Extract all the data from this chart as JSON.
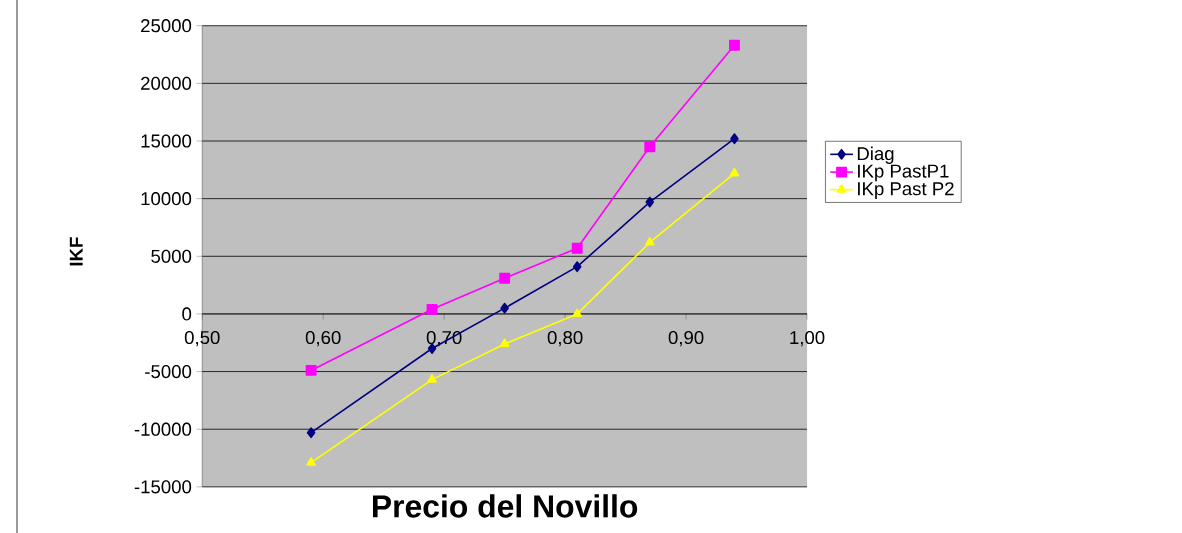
{
  "chart_data": {
    "type": "line",
    "xlabel": "Precio del Novillo",
    "ylabel": "IKF",
    "x": [
      0.59,
      0.69,
      0.75,
      0.81,
      0.87,
      0.94
    ],
    "series": [
      {
        "name": "Diag",
        "color": "#000080",
        "marker": "diamond",
        "values": [
          -10300,
          -3000,
          500,
          4100,
          9700,
          15200
        ]
      },
      {
        "name": "IKp PastP1",
        "color": "#ff00ff",
        "marker": "square",
        "values": [
          -4900,
          400,
          3100,
          5700,
          14500,
          23300
        ]
      },
      {
        "name": "IKp Past P2",
        "color": "#ffff00",
        "marker": "triangle",
        "values": [
          -12900,
          -5700,
          -2600,
          0,
          6200,
          12200
        ]
      }
    ],
    "xlim": [
      0.5,
      1.0
    ],
    "xticks": [
      {
        "value": 0.5,
        "label": "0,50"
      },
      {
        "value": 0.6,
        "label": "0,60"
      },
      {
        "value": 0.7,
        "label": "0,70"
      },
      {
        "value": 0.8,
        "label": "0,80"
      },
      {
        "value": 0.9,
        "label": "0,90"
      },
      {
        "value": 1.0,
        "label": "1,00"
      }
    ],
    "ylim": [
      -15000,
      25000
    ],
    "yticks": [
      -15000,
      -10000,
      -5000,
      0,
      5000,
      10000,
      15000,
      20000,
      25000
    ],
    "grid": "y",
    "legend": "right",
    "line_style": "solid"
  }
}
